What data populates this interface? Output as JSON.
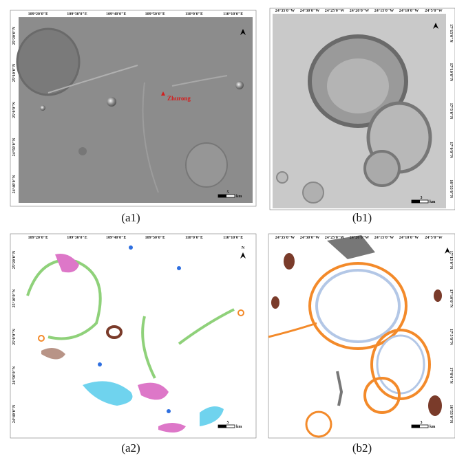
{
  "panels": [
    {
      "label": "(a1)",
      "x_ticks": [
        "109°20'0\"E",
        "109°30'0\"E",
        "109°40'0\"E",
        "109°50'0\"E",
        "110°0'0\"E",
        "110°10'0\"E"
      ],
      "y_ticks": [
        "25°20'0\"N",
        "25°10'0\"N",
        "25°0'0\"N",
        "24°50'0\"N",
        "24°40'0\"N"
      ],
      "scale": "5",
      "scale_unit": "km",
      "annotation": "Zhurong"
    },
    {
      "label": "(b1)",
      "x_ticks": [
        "24°35'0\"W",
        "24°30'0\"W",
        "24°25'0\"W",
        "24°20'0\"W",
        "24°15'0\"W",
        "24°10'0\"W",
        "24°5'0\"W"
      ],
      "y_ticks": [
        "17°15'0\"N",
        "17°10'0\"N",
        "17°5'0\"N",
        "17°0'0\"N",
        "16°55'0\"N"
      ],
      "scale": "3",
      "scale_unit": "km"
    },
    {
      "label": "(a2)",
      "x_ticks": [
        "109°20'0\"E",
        "109°30'0\"E",
        "109°40'0\"E",
        "109°50'0\"E",
        "110°0'0\"E",
        "110°10'0\"E"
      ],
      "y_ticks": [
        "25°20'0\"N",
        "25°10'0\"N",
        "25°0'0\"N",
        "24°50'0\"N",
        "24°40'0\"N"
      ],
      "scale": "5",
      "scale_unit": "km",
      "north": "N"
    },
    {
      "label": "(b2)",
      "x_ticks": [
        "24°35'0\"W",
        "24°30'0\"W",
        "24°25'0\"W",
        "24°20'0\"W",
        "24°15'0\"W",
        "24°10'0\"W",
        "24°5'0\"W"
      ],
      "y_ticks": [
        "17°15'0\"N",
        "17°10'0\"N",
        "17°5'0\"N",
        "17°0'0\"N",
        "16°55'0\"N"
      ],
      "scale": "3",
      "scale_unit": "km"
    }
  ]
}
